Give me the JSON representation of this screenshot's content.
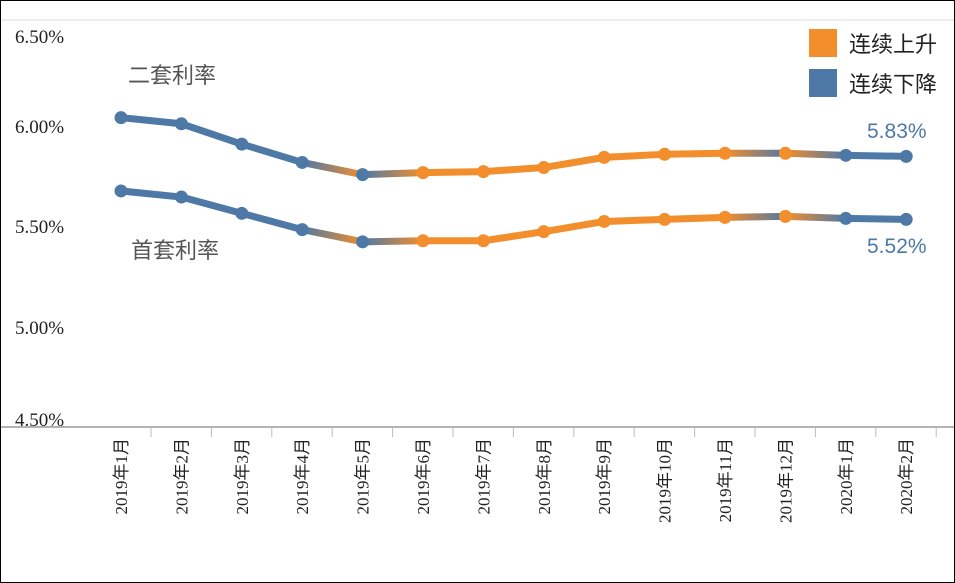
{
  "chart_data": {
    "type": "line",
    "categories": [
      "2019年1月",
      "2019年2月",
      "2019年3月",
      "2019年4月",
      "2019年5月",
      "2019年6月",
      "2019年7月",
      "2019年8月",
      "2019年9月",
      "2019年10月",
      "2019年11月",
      "2019年12月",
      "2020年1月",
      "2020年2月"
    ],
    "series": [
      {
        "name": "二套利率",
        "values": [
          6.02,
          5.99,
          5.89,
          5.8,
          5.74,
          5.75,
          5.755,
          5.775,
          5.825,
          5.84,
          5.845,
          5.845,
          5.835,
          5.83
        ]
      },
      {
        "name": "首套利率",
        "values": [
          5.66,
          5.63,
          5.55,
          5.47,
          5.41,
          5.415,
          5.415,
          5.46,
          5.51,
          5.52,
          5.53,
          5.535,
          5.525,
          5.52
        ]
      }
    ],
    "yticks": [
      "6.50%",
      "6.00%",
      "5.50%",
      "5.00%",
      "4.50%"
    ],
    "ylim": [
      4.5,
      6.5
    ],
    "end_labels": [
      "5.83%",
      "5.52%"
    ],
    "legend": {
      "position": "top-right",
      "items": [
        {
          "label": "连续上升",
          "color": "#f28e2b"
        },
        {
          "label": "连续下降",
          "color": "#4e79a7"
        }
      ]
    },
    "segment_trend": [
      "down",
      "down",
      "down",
      "down",
      "up",
      "up",
      "up",
      "up",
      "up",
      "up",
      "up",
      "down",
      "down"
    ],
    "colors": {
      "up": "#f28e2b",
      "down": "#4e79a7",
      "label": "#4e79a7"
    }
  }
}
